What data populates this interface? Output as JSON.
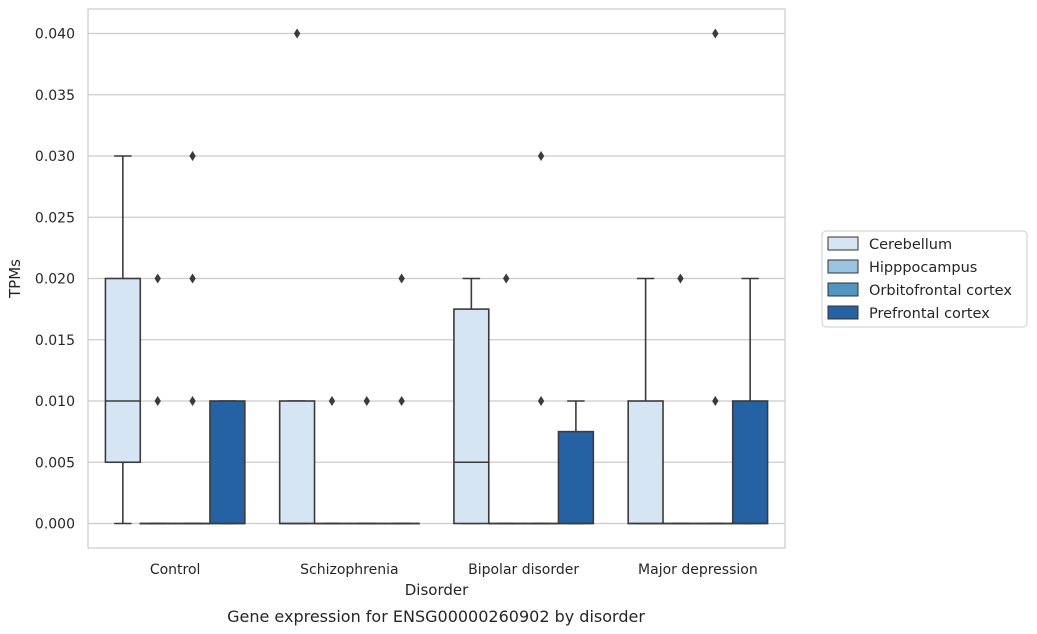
{
  "caption": "Gene expression for ENSG00000260902 by disorder",
  "chart_data": {
    "type": "box",
    "xlabel": "Disorder",
    "ylabel": "TPMs",
    "ylim": [
      -0.002,
      0.042
    ],
    "yticks": [
      "0.000",
      "0.005",
      "0.010",
      "0.015",
      "0.020",
      "0.025",
      "0.030",
      "0.035",
      "0.040"
    ],
    "ytick_values": [
      0,
      0.005,
      0.01,
      0.015,
      0.02,
      0.025,
      0.03,
      0.035,
      0.04
    ],
    "grid": "horizontal",
    "legend_position": "right",
    "categories": [
      "Control",
      "Schizophrenia",
      "Bipolar disorder",
      "Major depression"
    ],
    "series": [
      {
        "name": "Cerebellum",
        "color": "#d6e5f3",
        "boxes": [
          {
            "q1": 0.005,
            "median": 0.01,
            "q3": 0.02,
            "whislo": 0.0,
            "whishi": 0.03,
            "fliers": []
          },
          {
            "q1": 0.0,
            "median": 0.0,
            "q3": 0.01,
            "whislo": 0.0,
            "whishi": 0.01,
            "fliers": [
              0.04
            ]
          },
          {
            "q1": 0.0,
            "median": 0.005,
            "q3": 0.0175,
            "whislo": 0.0,
            "whishi": 0.02,
            "fliers": []
          },
          {
            "q1": 0.0,
            "median": 0.0,
            "q3": 0.01,
            "whislo": 0.0,
            "whishi": 0.02,
            "fliers": []
          }
        ]
      },
      {
        "name": "Hipppocampus",
        "color": "#9ac5e0",
        "boxes": [
          {
            "q1": 0.0,
            "median": 0.0,
            "q3": 0.0,
            "whislo": 0.0,
            "whishi": 0.0,
            "fliers": [
              0.01,
              0.02
            ]
          },
          {
            "q1": 0.0,
            "median": 0.0,
            "q3": 0.0,
            "whislo": 0.0,
            "whishi": 0.0,
            "fliers": [
              0.01
            ]
          },
          {
            "q1": 0.0,
            "median": 0.0,
            "q3": 0.0,
            "whislo": 0.0,
            "whishi": 0.0,
            "fliers": [
              0.02
            ]
          },
          {
            "q1": 0.0,
            "median": 0.0,
            "q3": 0.0,
            "whislo": 0.0,
            "whishi": 0.0,
            "fliers": [
              0.02
            ]
          }
        ]
      },
      {
        "name": "Orbitofrontal cortex",
        "color": "#5294c2",
        "boxes": [
          {
            "q1": 0.0,
            "median": 0.0,
            "q3": 0.0,
            "whislo": 0.0,
            "whishi": 0.0,
            "fliers": [
              0.01,
              0.02,
              0.03
            ]
          },
          {
            "q1": 0.0,
            "median": 0.0,
            "q3": 0.0,
            "whislo": 0.0,
            "whishi": 0.0,
            "fliers": [
              0.01
            ]
          },
          {
            "q1": 0.0,
            "median": 0.0,
            "q3": 0.0,
            "whislo": 0.0,
            "whishi": 0.0,
            "fliers": [
              0.01,
              0.03
            ]
          },
          {
            "q1": 0.0,
            "median": 0.0,
            "q3": 0.0,
            "whislo": 0.0,
            "whishi": 0.0,
            "fliers": [
              0.01,
              0.04
            ]
          }
        ]
      },
      {
        "name": "Prefrontal cortex",
        "color": "#2462a3",
        "boxes": [
          {
            "q1": 0.0,
            "median": 0.0,
            "q3": 0.01,
            "whislo": 0.0,
            "whishi": 0.01,
            "fliers": []
          },
          {
            "q1": 0.0,
            "median": 0.0,
            "q3": 0.0,
            "whislo": 0.0,
            "whishi": 0.0,
            "fliers": [
              0.01,
              0.02
            ]
          },
          {
            "q1": 0.0,
            "median": 0.0,
            "q3": 0.0075,
            "whislo": 0.0,
            "whishi": 0.01,
            "fliers": []
          },
          {
            "q1": 0.0,
            "median": 0.0,
            "q3": 0.01,
            "whislo": 0.0,
            "whishi": 0.02,
            "fliers": []
          }
        ]
      }
    ]
  }
}
